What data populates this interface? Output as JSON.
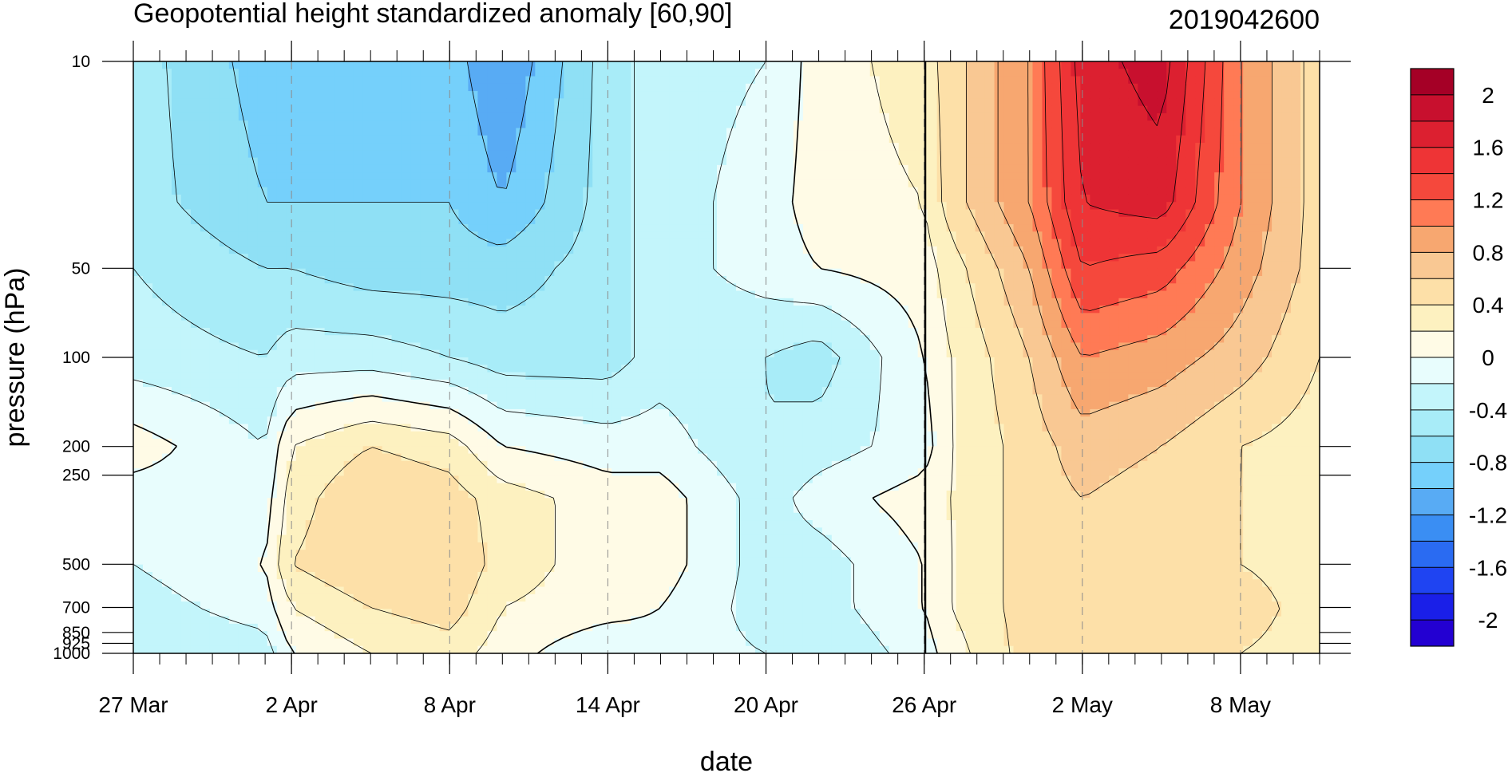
{
  "chart_data": {
    "type": "heatmap",
    "title": "Geopotential height standardized anomaly [60,90]",
    "timestamp": "2019042600",
    "xlabel": "date",
    "ylabel": "pressure (hPa)",
    "x_ticks": [
      "27 Mar",
      "2 Apr",
      "8 Apr",
      "14 Apr",
      "20 Apr",
      "26 Apr",
      "2 May",
      "8 May"
    ],
    "x_range": [
      "27 Mar",
      "11 May"
    ],
    "current_date": "26 Apr",
    "y_ticks": [
      10,
      50,
      100,
      200,
      250,
      500,
      700,
      850,
      925,
      1000
    ],
    "y_range": [
      1000,
      10
    ],
    "y_scale": "log",
    "grid": "dashed vertical lines at major date ticks",
    "colorbar": {
      "labels": [
        "2",
        "1.6",
        "1.2",
        "0.8",
        "0.4",
        "0",
        "-0.4",
        "-0.8",
        "-1.2",
        "-1.6",
        "-2"
      ],
      "levels": [
        2.2,
        2.0,
        1.8,
        1.6,
        1.4,
        1.2,
        1.0,
        0.8,
        0.6,
        0.4,
        0.2,
        0.0,
        -0.2,
        -0.4,
        -0.6,
        -0.8,
        -1.0,
        -1.2,
        -1.4,
        -1.6,
        -1.8,
        -2.0,
        -2.2
      ],
      "colors": [
        "#a50026",
        "#c8102e",
        "#dc2030",
        "#ee3436",
        "#f5483c",
        "#ff7a55",
        "#f7a770",
        "#f9c893",
        "#fde0a8",
        "#fdf1c0",
        "#fffbe6",
        "#e8fdfd",
        "#c3f5fb",
        "#a8ecf8",
        "#8fe0f5",
        "#75d0fb",
        "#58abf4",
        "#3a8ef3",
        "#2a6bf2",
        "#1f44f2",
        "#1a1fe8",
        "#2300d2"
      ]
    },
    "dates": [
      "27 Mar",
      "1 Apr",
      "2 Apr",
      "5 Apr",
      "8 Apr",
      "10 Apr",
      "14 Apr",
      "16 Apr",
      "20 Apr",
      "22 Apr",
      "26 Apr",
      "27 Apr",
      "30 Apr",
      "2 May",
      "5 May",
      "8 May",
      "11 May"
    ],
    "levels_hPa": [
      10,
      30,
      50,
      100,
      200,
      300,
      500,
      700,
      1000
    ],
    "anomaly": [
      [
        -0.5,
        -0.9,
        -0.9,
        -0.9,
        -0.9,
        -1.2,
        -0.5,
        -0.3,
        -0.2,
        0.1,
        0.3,
        0.5,
        1.0,
        1.7,
        1.9,
        1.0,
        0.5
      ],
      [
        -0.5,
        -0.8,
        -0.8,
        -0.8,
        -0.8,
        -1.0,
        -0.5,
        -0.3,
        -0.1,
        0.1,
        0.2,
        0.5,
        1.0,
        1.6,
        1.7,
        1.0,
        0.5
      ],
      [
        -0.4,
        -0.6,
        -0.6,
        -0.7,
        -0.7,
        -0.7,
        -0.5,
        -0.3,
        -0.1,
        0.0,
        0.1,
        0.3,
        0.8,
        1.4,
        1.3,
        0.9,
        0.5
      ],
      [
        -0.3,
        -0.4,
        -0.3,
        -0.3,
        -0.4,
        -0.5,
        -0.5,
        -0.3,
        -0.4,
        -0.5,
        0.0,
        0.2,
        0.6,
        1.0,
        0.9,
        0.7,
        0.4
      ],
      [
        0.1,
        -0.2,
        0.2,
        0.4,
        0.3,
        0.0,
        -0.1,
        -0.1,
        -0.4,
        -0.3,
        -0.1,
        0.2,
        0.5,
        0.7,
        0.6,
        0.4,
        0.3
      ],
      [
        -0.1,
        -0.1,
        0.3,
        0.6,
        0.5,
        0.3,
        0.1,
        0.1,
        -0.3,
        -0.1,
        0.1,
        0.2,
        0.5,
        0.6,
        0.5,
        0.4,
        0.3
      ],
      [
        -0.2,
        0.0,
        0.4,
        0.6,
        0.6,
        0.3,
        0.1,
        0.1,
        -0.3,
        -0.3,
        0.0,
        0.2,
        0.5,
        0.6,
        0.5,
        0.4,
        0.3
      ],
      [
        -0.3,
        -0.1,
        0.2,
        0.4,
        0.5,
        0.2,
        0.1,
        0.0,
        -0.3,
        -0.3,
        0.0,
        0.2,
        0.5,
        0.6,
        0.6,
        0.5,
        0.3
      ],
      [
        -0.4,
        -0.3,
        0.0,
        0.2,
        0.3,
        0.1,
        -0.2,
        -0.1,
        -0.2,
        -0.4,
        -0.1,
        0.1,
        0.5,
        0.6,
        0.5,
        0.4,
        0.3
      ]
    ]
  }
}
